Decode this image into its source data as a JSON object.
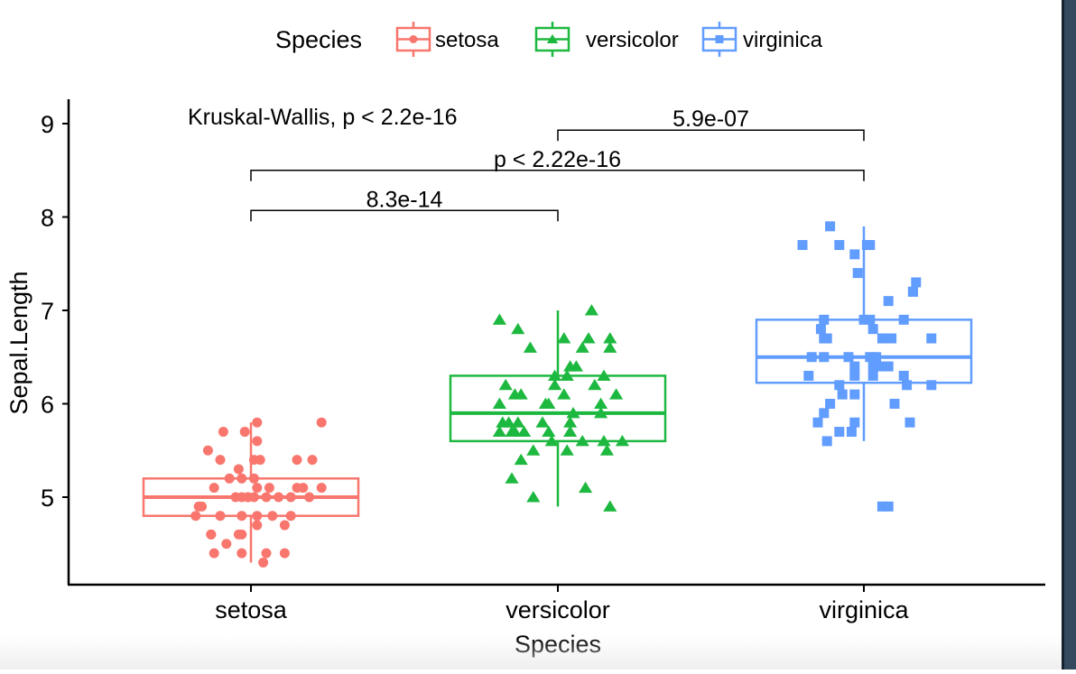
{
  "chart_data": {
    "type": "box",
    "xlabel": "Species",
    "ylabel": "Sepal.Length",
    "categories": [
      "setosa",
      "versicolor",
      "virginica"
    ],
    "ylim": [
      4.06,
      9.26
    ],
    "yticks": [
      5,
      6,
      7,
      8,
      9
    ],
    "grid": false,
    "legend": {
      "title": "Species",
      "placement": "top",
      "entries": [
        {
          "label": "setosa",
          "color": "#F8766D",
          "shape": "circle"
        },
        {
          "label": "versicolor",
          "color": "#1DB83F",
          "shape": "triangle"
        },
        {
          "label": "virginica",
          "color": "#619CFF",
          "shape": "square"
        }
      ]
    },
    "series": [
      {
        "name": "setosa",
        "color": "#F8766D",
        "shape": "circle",
        "box": {
          "whisker_low": 4.3,
          "q1": 4.8,
          "median": 5.0,
          "q3": 5.2,
          "whisker_high": 5.8
        },
        "outliers": [],
        "points": [
          [
            0.02,
            5.8
          ],
          [
            0.23,
            5.8
          ],
          [
            -0.02,
            5.7
          ],
          [
            -0.09,
            5.7
          ],
          [
            -0.14,
            5.5
          ],
          [
            0.02,
            5.6
          ],
          [
            -0.1,
            5.4
          ],
          [
            0.15,
            5.4
          ],
          [
            0.2,
            5.4
          ],
          [
            0.03,
            5.4
          ],
          [
            0.01,
            5.4
          ],
          [
            -0.04,
            5.3
          ],
          [
            -0.03,
            5.2
          ],
          [
            0.01,
            5.2
          ],
          [
            -0.07,
            5.2
          ],
          [
            0.23,
            5.1
          ],
          [
            0.17,
            5.1
          ],
          [
            0.15,
            5.1
          ],
          [
            -0.12,
            5.1
          ],
          [
            0.02,
            5.1
          ],
          [
            -0.01,
            5.0
          ],
          [
            0.05,
            5.0
          ],
          [
            -0.05,
            5.0
          ],
          [
            0.09,
            5.0
          ],
          [
            -0.03,
            5.0
          ],
          [
            -0.01,
            5.0
          ],
          [
            0.19,
            5.0
          ],
          [
            0.13,
            5.0
          ],
          [
            -0.16,
            4.9
          ],
          [
            -0.17,
            4.9
          ],
          [
            -0.1,
            4.8
          ],
          [
            -0.18,
            4.8
          ],
          [
            0.02,
            4.8
          ],
          [
            0.13,
            4.8
          ],
          [
            -0.03,
            4.8
          ],
          [
            0.07,
            4.8
          ],
          [
            0.02,
            4.7
          ],
          [
            0.11,
            4.7
          ],
          [
            -0.03,
            4.6
          ],
          [
            -0.04,
            4.6
          ],
          [
            -0.13,
            4.6
          ],
          [
            -0.13,
            4.6
          ],
          [
            -0.08,
            4.5
          ],
          [
            -0.12,
            4.4
          ],
          [
            0.05,
            4.4
          ],
          [
            -0.03,
            4.4
          ],
          [
            0.11,
            4.4
          ],
          [
            0.04,
            4.3
          ],
          [
            0.01,
            5.0
          ],
          [
            0.06,
            5.1
          ]
        ]
      },
      {
        "name": "versicolor",
        "color": "#1DB83F",
        "shape": "triangle",
        "box": {
          "whisker_low": 4.9,
          "q1": 5.6,
          "median": 5.9,
          "q3": 6.3,
          "whisker_high": 7.0
        },
        "outliers": [],
        "points": [
          [
            0.11,
            7.0
          ],
          [
            -0.19,
            6.9
          ],
          [
            -0.13,
            6.8
          ],
          [
            0.02,
            6.7
          ],
          [
            0.1,
            6.7
          ],
          [
            0.17,
            6.7
          ],
          [
            0.08,
            6.6
          ],
          [
            0.17,
            6.6
          ],
          [
            -0.09,
            6.6
          ],
          [
            0.06,
            6.4
          ],
          [
            0.04,
            6.4
          ],
          [
            0.03,
            6.3
          ],
          [
            0.15,
            6.3
          ],
          [
            -0.01,
            6.3
          ],
          [
            -0.01,
            6.2
          ],
          [
            -0.17,
            6.2
          ],
          [
            0.12,
            6.2
          ],
          [
            0.19,
            6.1
          ],
          [
            -0.14,
            6.1
          ],
          [
            -0.12,
            6.1
          ],
          [
            0.02,
            6.1
          ],
          [
            -0.19,
            6.0
          ],
          [
            -0.04,
            6.0
          ],
          [
            -0.03,
            6.0
          ],
          [
            0.14,
            6.0
          ],
          [
            0.05,
            5.9
          ],
          [
            0.14,
            5.9
          ],
          [
            -0.16,
            5.8
          ],
          [
            -0.19,
            5.7
          ],
          [
            -0.18,
            5.8
          ],
          [
            -0.15,
            5.7
          ],
          [
            -0.14,
            5.7
          ],
          [
            -0.05,
            5.8
          ],
          [
            -0.11,
            5.7
          ],
          [
            0.04,
            5.8
          ],
          [
            0.04,
            5.7
          ],
          [
            -0.03,
            5.7
          ],
          [
            -0.13,
            5.8
          ],
          [
            0.08,
            5.6
          ],
          [
            0.15,
            5.6
          ],
          [
            0.16,
            5.5
          ],
          [
            0.21,
            5.6
          ],
          [
            -0.02,
            5.6
          ],
          [
            -0.08,
            5.5
          ],
          [
            0.03,
            5.5
          ],
          [
            -0.12,
            5.4
          ],
          [
            -0.15,
            5.2
          ],
          [
            0.09,
            5.1
          ],
          [
            -0.08,
            5.0
          ],
          [
            0.17,
            4.9
          ]
        ]
      },
      {
        "name": "virginica",
        "color": "#619CFF",
        "shape": "square",
        "box": {
          "whisker_low": 5.6,
          "q1": 6.225,
          "median": 6.5,
          "q3": 6.9,
          "whisker_high": 7.9
        },
        "outliers": [
          4.9
        ],
        "points": [
          [
            -0.11,
            7.9
          ],
          [
            -0.2,
            7.7
          ],
          [
            -0.08,
            7.7
          ],
          [
            0.01,
            7.7
          ],
          [
            0.02,
            7.7
          ],
          [
            -0.03,
            7.6
          ],
          [
            -0.02,
            7.4
          ],
          [
            0.16,
            7.2
          ],
          [
            0.17,
            7.3
          ],
          [
            0.16,
            7.2
          ],
          [
            0.08,
            7.1
          ],
          [
            -0.13,
            6.9
          ],
          [
            0.02,
            6.9
          ],
          [
            0.13,
            6.9
          ],
          [
            -0.14,
            6.8
          ],
          [
            -0.13,
            6.7
          ],
          [
            -0.12,
            6.7
          ],
          [
            0.06,
            6.7
          ],
          [
            0.03,
            6.8
          ],
          [
            0.09,
            6.7
          ],
          [
            0.22,
            6.7
          ],
          [
            -0.17,
            6.5
          ],
          [
            -0.13,
            6.5
          ],
          [
            -0.05,
            6.5
          ],
          [
            0.02,
            6.5
          ],
          [
            0.03,
            6.4
          ],
          [
            0.05,
            6.4
          ],
          [
            0.08,
            6.4
          ],
          [
            -0.03,
            6.4
          ],
          [
            -0.18,
            6.3
          ],
          [
            -0.08,
            6.2
          ],
          [
            -0.03,
            6.3
          ],
          [
            0.03,
            6.3
          ],
          [
            0.13,
            6.3
          ],
          [
            0.14,
            6.2
          ],
          [
            -0.07,
            6.1
          ],
          [
            -0.03,
            6.1
          ],
          [
            0.22,
            6.2
          ],
          [
            -0.11,
            6.0
          ],
          [
            0.1,
            6.0
          ],
          [
            -0.13,
            5.9
          ],
          [
            -0.15,
            5.8
          ],
          [
            -0.03,
            5.8
          ],
          [
            0.15,
            5.8
          ],
          [
            -0.04,
            5.7
          ],
          [
            -0.12,
            5.6
          ],
          [
            -0.08,
            5.7
          ],
          [
            0.06,
            4.9
          ],
          [
            0.04,
            6.5
          ],
          [
            0.0,
            6.9
          ]
        ]
      }
    ],
    "annotations": {
      "global_test": "Kruskal-Wallis, p < 2.2e-16",
      "comparisons": [
        {
          "group1": "setosa",
          "group2": "versicolor",
          "label": "8.3e-14",
          "y": 8.07
        },
        {
          "group1": "setosa",
          "group2": "virginica",
          "label": "p < 2.22e-16",
          "y": 8.5
        },
        {
          "group1": "versicolor",
          "group2": "virginica",
          "label": "5.9e-07",
          "y": 8.93
        }
      ]
    }
  }
}
